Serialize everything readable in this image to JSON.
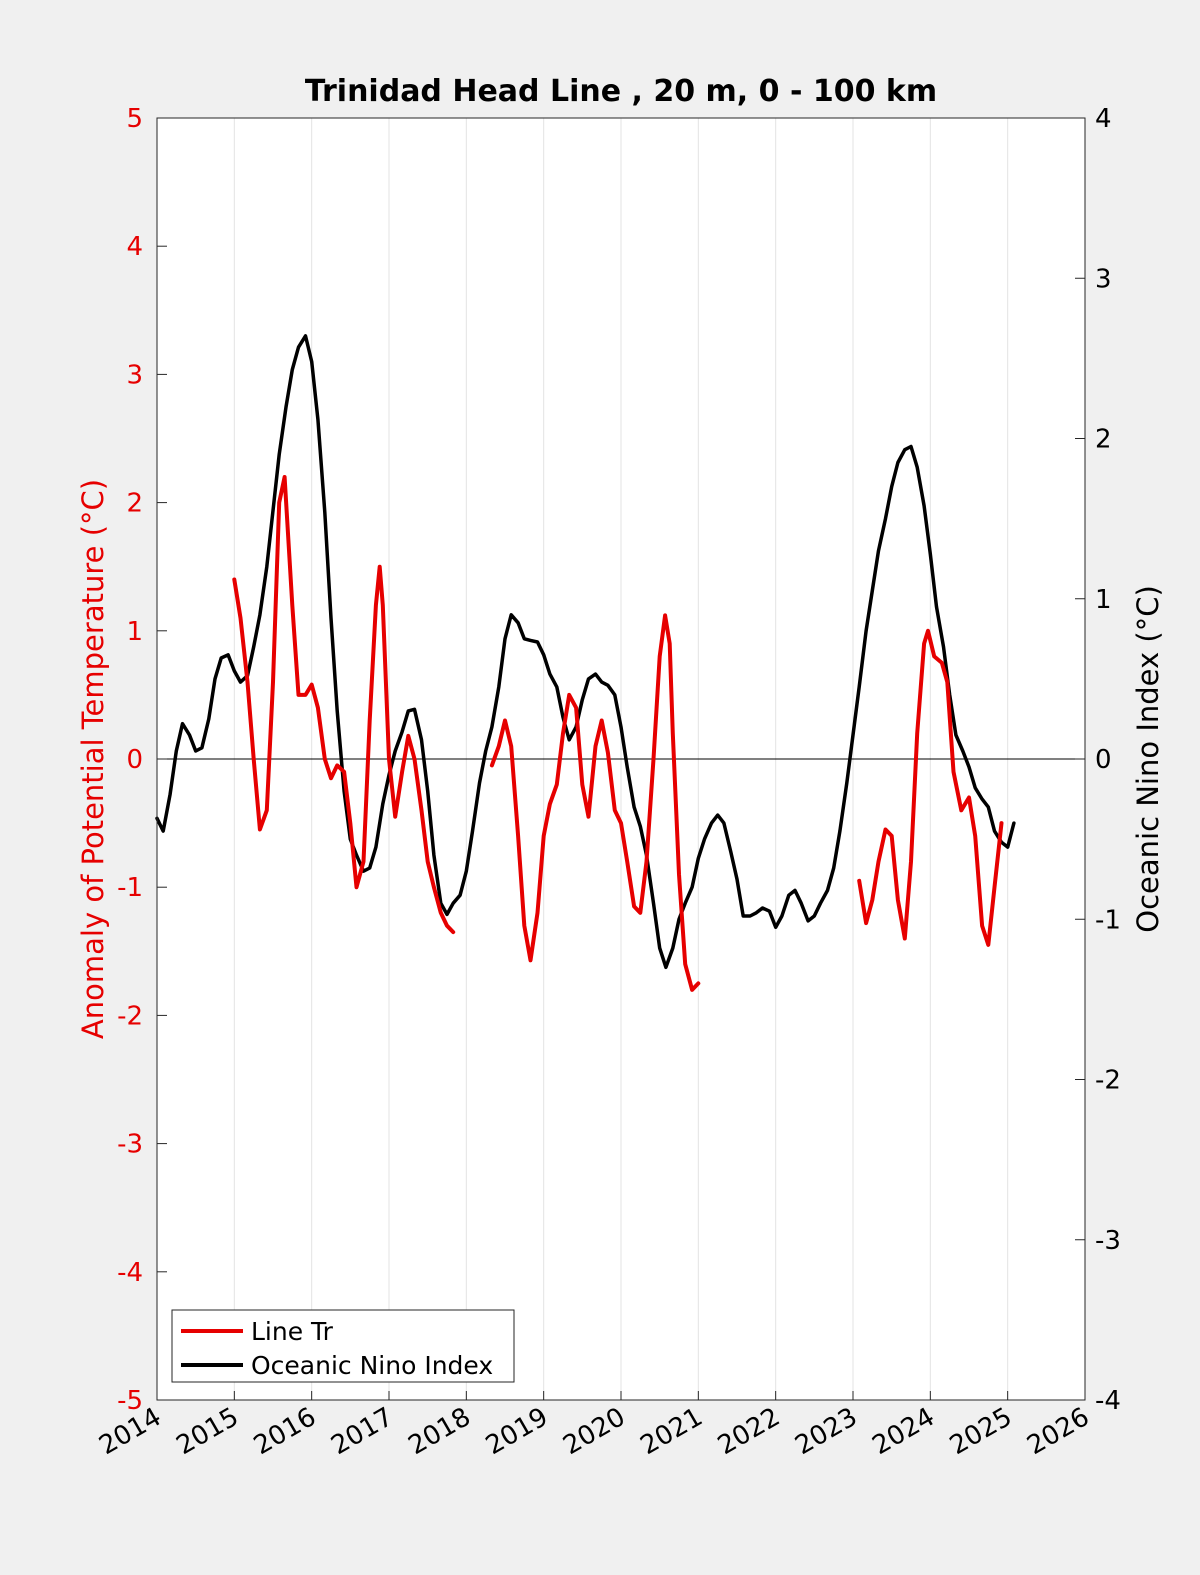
{
  "chart_data": {
    "type": "line",
    "title": "Trinidad Head Line , 20 m, 0 - 100 km",
    "xlabel": "",
    "ylabel_left": "Anomaly of Potential Temperature (°C)",
    "ylabel_right": "Oceanic Nino Index (°C)",
    "xlim": [
      2014,
      2026
    ],
    "ylim_left": [
      -5,
      5
    ],
    "ylim_right": [
      -4,
      4
    ],
    "x_ticks": [
      "2014",
      "2015",
      "2016",
      "2017",
      "2018",
      "2019",
      "2020",
      "2021",
      "2022",
      "2023",
      "2024",
      "2025",
      "2026"
    ],
    "y_left_ticks": [
      "5",
      "4",
      "3",
      "2",
      "1",
      "0",
      "-1",
      "-2",
      "-3",
      "-4",
      "-5"
    ],
    "y_right_ticks": [
      "4",
      "3",
      "2",
      "1",
      "0",
      "-1",
      "-2",
      "-3",
      "-4"
    ],
    "grid": "vertical",
    "legend_position": "bottom-left",
    "colors": {
      "line_tr": "#e60000",
      "oni": "#000000",
      "left_axis": "#e60000",
      "right_axis": "#000000"
    },
    "series": [
      {
        "name": "Line Tr",
        "axis": "left",
        "segments": [
          [
            [
              2015.0,
              1.4
            ],
            [
              2015.08,
              1.1
            ],
            [
              2015.17,
              0.6
            ],
            [
              2015.25,
              0.0
            ],
            [
              2015.33,
              -0.55
            ],
            [
              2015.42,
              -0.4
            ],
            [
              2015.5,
              0.6
            ],
            [
              2015.58,
              2.0
            ],
            [
              2015.65,
              2.2
            ],
            [
              2015.75,
              1.2
            ],
            [
              2015.83,
              0.5
            ],
            [
              2015.92,
              0.5
            ],
            [
              2016.0,
              0.58
            ],
            [
              2016.08,
              0.4
            ],
            [
              2016.17,
              0.0
            ],
            [
              2016.25,
              -0.15
            ],
            [
              2016.33,
              -0.05
            ],
            [
              2016.42,
              -0.1
            ],
            [
              2016.5,
              -0.5
            ],
            [
              2016.58,
              -1.0
            ],
            [
              2016.67,
              -0.8
            ],
            [
              2016.75,
              0.3
            ],
            [
              2016.83,
              1.2
            ],
            [
              2016.88,
              1.5
            ],
            [
              2016.92,
              1.2
            ],
            [
              2017.0,
              0.0
            ],
            [
              2017.08,
              -0.45
            ],
            [
              2017.17,
              -0.1
            ],
            [
              2017.25,
              0.18
            ],
            [
              2017.33,
              0.0
            ],
            [
              2017.42,
              -0.4
            ],
            [
              2017.5,
              -0.8
            ],
            [
              2017.58,
              -1.0
            ],
            [
              2017.67,
              -1.2
            ],
            [
              2017.75,
              -1.3
            ],
            [
              2017.83,
              -1.35
            ]
          ],
          [
            [
              2018.33,
              -0.05
            ],
            [
              2018.42,
              0.1
            ],
            [
              2018.5,
              0.3
            ],
            [
              2018.58,
              0.1
            ],
            [
              2018.67,
              -0.6
            ],
            [
              2018.75,
              -1.3
            ],
            [
              2018.83,
              -1.57
            ],
            [
              2018.92,
              -1.2
            ],
            [
              2019.0,
              -0.6
            ],
            [
              2019.08,
              -0.35
            ],
            [
              2019.17,
              -0.2
            ],
            [
              2019.25,
              0.2
            ],
            [
              2019.33,
              0.5
            ],
            [
              2019.42,
              0.4
            ],
            [
              2019.5,
              -0.2
            ],
            [
              2019.58,
              -0.45
            ],
            [
              2019.67,
              0.1
            ],
            [
              2019.75,
              0.3
            ],
            [
              2019.83,
              0.05
            ],
            [
              2019.92,
              -0.4
            ],
            [
              2020.0,
              -0.5
            ],
            [
              2020.08,
              -0.8
            ],
            [
              2020.17,
              -1.15
            ],
            [
              2020.25,
              -1.2
            ],
            [
              2020.33,
              -0.8
            ],
            [
              2020.42,
              0.0
            ],
            [
              2020.5,
              0.8
            ],
            [
              2020.57,
              1.12
            ],
            [
              2020.63,
              0.9
            ],
            [
              2020.67,
              0.2
            ],
            [
              2020.75,
              -0.9
            ],
            [
              2020.83,
              -1.6
            ],
            [
              2020.92,
              -1.8
            ],
            [
              2021.0,
              -1.75
            ]
          ],
          [
            [
              2023.08,
              -0.95
            ],
            [
              2023.17,
              -1.28
            ],
            [
              2023.25,
              -1.1
            ],
            [
              2023.33,
              -0.8
            ],
            [
              2023.42,
              -0.55
            ],
            [
              2023.5,
              -0.6
            ],
            [
              2023.58,
              -1.1
            ],
            [
              2023.67,
              -1.4
            ],
            [
              2023.75,
              -0.8
            ],
            [
              2023.83,
              0.2
            ],
            [
              2023.92,
              0.9
            ],
            [
              2023.97,
              1.0
            ],
            [
              2024.05,
              0.8
            ],
            [
              2024.15,
              0.75
            ],
            [
              2024.22,
              0.6
            ],
            [
              2024.3,
              -0.1
            ],
            [
              2024.4,
              -0.4
            ],
            [
              2024.5,
              -0.3
            ],
            [
              2024.58,
              -0.6
            ],
            [
              2024.67,
              -1.3
            ],
            [
              2024.75,
              -1.45
            ],
            [
              2024.83,
              -1.0
            ],
            [
              2024.92,
              -0.5
            ]
          ]
        ]
      },
      {
        "name": "Oceanic Nino Index",
        "axis": "right",
        "points": [
          [
            2014.0,
            -0.37
          ],
          [
            2014.08,
            -0.45
          ],
          [
            2014.17,
            -0.22
          ],
          [
            2014.25,
            0.05
          ],
          [
            2014.33,
            0.22
          ],
          [
            2014.42,
            0.15
          ],
          [
            2014.5,
            0.05
          ],
          [
            2014.58,
            0.07
          ],
          [
            2014.67,
            0.25
          ],
          [
            2014.75,
            0.5
          ],
          [
            2014.83,
            0.63
          ],
          [
            2014.92,
            0.65
          ],
          [
            2015.0,
            0.55
          ],
          [
            2015.08,
            0.48
          ],
          [
            2015.17,
            0.52
          ],
          [
            2015.25,
            0.7
          ],
          [
            2015.33,
            0.9
          ],
          [
            2015.42,
            1.2
          ],
          [
            2015.5,
            1.55
          ],
          [
            2015.58,
            1.9
          ],
          [
            2015.67,
            2.2
          ],
          [
            2015.75,
            2.43
          ],
          [
            2015.83,
            2.57
          ],
          [
            2015.92,
            2.64
          ],
          [
            2016.0,
            2.48
          ],
          [
            2016.08,
            2.12
          ],
          [
            2016.17,
            1.54
          ],
          [
            2016.25,
            0.88
          ],
          [
            2016.33,
            0.3
          ],
          [
            2016.42,
            -0.2
          ],
          [
            2016.5,
            -0.5
          ],
          [
            2016.58,
            -0.6
          ],
          [
            2016.67,
            -0.7
          ],
          [
            2016.75,
            -0.68
          ],
          [
            2016.83,
            -0.55
          ],
          [
            2016.92,
            -0.28
          ],
          [
            2017.0,
            -0.1
          ],
          [
            2017.08,
            0.05
          ],
          [
            2017.17,
            0.17
          ],
          [
            2017.25,
            0.3
          ],
          [
            2017.33,
            0.31
          ],
          [
            2017.42,
            0.12
          ],
          [
            2017.5,
            -0.2
          ],
          [
            2017.58,
            -0.6
          ],
          [
            2017.67,
            -0.9
          ],
          [
            2017.75,
            -0.97
          ],
          [
            2017.83,
            -0.9
          ],
          [
            2017.92,
            -0.85
          ],
          [
            2018.0,
            -0.7
          ],
          [
            2018.08,
            -0.45
          ],
          [
            2018.17,
            -0.15
          ],
          [
            2018.25,
            0.05
          ],
          [
            2018.33,
            0.2
          ],
          [
            2018.42,
            0.45
          ],
          [
            2018.5,
            0.75
          ],
          [
            2018.58,
            0.9
          ],
          [
            2018.67,
            0.85
          ],
          [
            2018.75,
            0.75
          ],
          [
            2018.83,
            0.74
          ],
          [
            2018.92,
            0.73
          ],
          [
            2019.0,
            0.65
          ],
          [
            2019.08,
            0.53
          ],
          [
            2019.17,
            0.45
          ],
          [
            2019.25,
            0.26
          ],
          [
            2019.33,
            0.12
          ],
          [
            2019.42,
            0.2
          ],
          [
            2019.5,
            0.37
          ],
          [
            2019.58,
            0.5
          ],
          [
            2019.67,
            0.53
          ],
          [
            2019.75,
            0.48
          ],
          [
            2019.83,
            0.46
          ],
          [
            2019.92,
            0.4
          ],
          [
            2020.0,
            0.2
          ],
          [
            2020.08,
            -0.05
          ],
          [
            2020.17,
            -0.3
          ],
          [
            2020.25,
            -0.42
          ],
          [
            2020.33,
            -0.6
          ],
          [
            2020.42,
            -0.9
          ],
          [
            2020.5,
            -1.18
          ],
          [
            2020.58,
            -1.3
          ],
          [
            2020.67,
            -1.18
          ],
          [
            2020.75,
            -1.0
          ],
          [
            2020.83,
            -0.9
          ],
          [
            2020.92,
            -0.8
          ],
          [
            2021.0,
            -0.62
          ],
          [
            2021.08,
            -0.5
          ],
          [
            2021.17,
            -0.4
          ],
          [
            2021.25,
            -0.35
          ],
          [
            2021.33,
            -0.4
          ],
          [
            2021.42,
            -0.58
          ],
          [
            2021.5,
            -0.75
          ],
          [
            2021.58,
            -0.98
          ],
          [
            2021.67,
            -0.98
          ],
          [
            2021.75,
            -0.96
          ],
          [
            2021.83,
            -0.93
          ],
          [
            2021.92,
            -0.95
          ],
          [
            2022.0,
            -1.05
          ],
          [
            2022.08,
            -0.98
          ],
          [
            2022.17,
            -0.85
          ],
          [
            2022.25,
            -0.82
          ],
          [
            2022.33,
            -0.9
          ],
          [
            2022.42,
            -1.01
          ],
          [
            2022.5,
            -0.98
          ],
          [
            2022.58,
            -0.9
          ],
          [
            2022.67,
            -0.82
          ],
          [
            2022.75,
            -0.68
          ],
          [
            2022.83,
            -0.45
          ],
          [
            2022.92,
            -0.15
          ],
          [
            2023.0,
            0.15
          ],
          [
            2023.08,
            0.45
          ],
          [
            2023.17,
            0.8
          ],
          [
            2023.25,
            1.05
          ],
          [
            2023.33,
            1.3
          ],
          [
            2023.42,
            1.5
          ],
          [
            2023.5,
            1.7
          ],
          [
            2023.58,
            1.85
          ],
          [
            2023.67,
            1.93
          ],
          [
            2023.75,
            1.95
          ],
          [
            2023.83,
            1.82
          ],
          [
            2023.92,
            1.58
          ],
          [
            2024.0,
            1.28
          ],
          [
            2024.08,
            0.95
          ],
          [
            2024.17,
            0.7
          ],
          [
            2024.25,
            0.4
          ],
          [
            2024.33,
            0.15
          ],
          [
            2024.42,
            0.05
          ],
          [
            2024.5,
            -0.05
          ],
          [
            2024.58,
            -0.18
          ],
          [
            2024.67,
            -0.25
          ],
          [
            2024.75,
            -0.3
          ],
          [
            2024.83,
            -0.45
          ],
          [
            2024.92,
            -0.52
          ],
          [
            2025.0,
            -0.55
          ],
          [
            2025.08,
            -0.4
          ]
        ]
      }
    ]
  }
}
